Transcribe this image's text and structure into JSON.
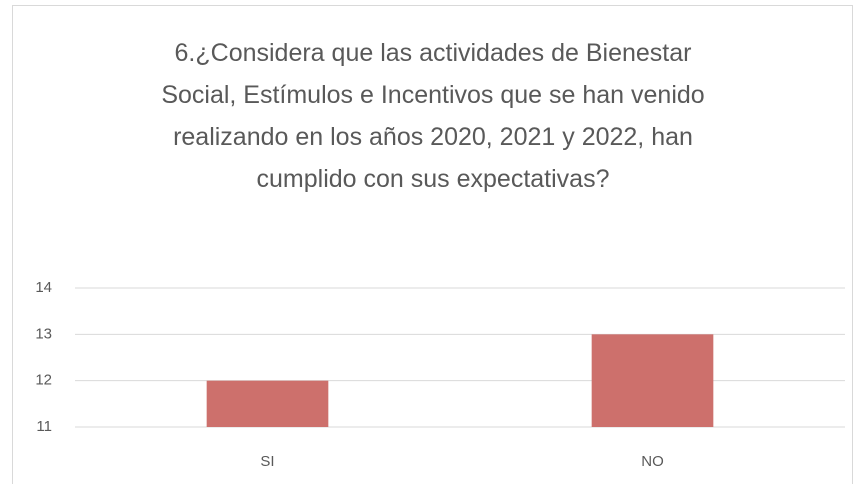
{
  "chart_data": {
    "type": "bar",
    "title": "6.¿Considera que las actividades de Bienestar Social, Estímulos e Incentivos que se han venido realizando en los años 2020, 2021 y 2022, han cumplido con sus expectativas?",
    "categories": [
      "SI",
      "NO"
    ],
    "values": [
      12,
      13
    ],
    "color": "#cd706c",
    "ylim": [
      11,
      14
    ],
    "yticks": [
      11,
      12,
      13,
      14
    ],
    "grid": true
  }
}
